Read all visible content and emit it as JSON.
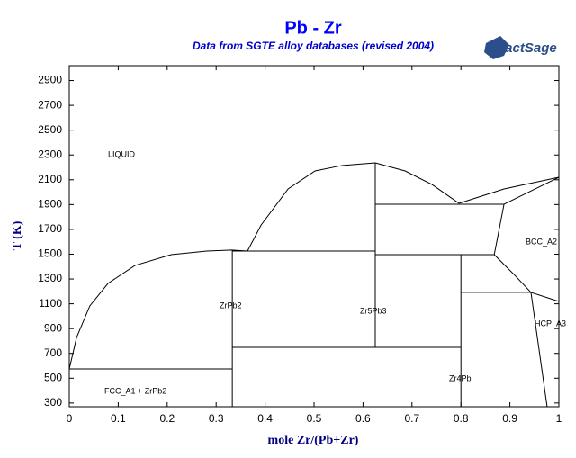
{
  "logo": "FactSage",
  "chart_data": {
    "type": "line",
    "title": "Pb - Zr",
    "subtitle": "Data from SGTE alloy databases (revised 2004)",
    "x_label": "mole Zr/(Pb+Zr)",
    "y_label": "T (K)",
    "xlim": [
      0,
      1
    ],
    "ylim": [
      270,
      3020
    ],
    "xticks": [
      0,
      0.1,
      0.2,
      0.3,
      0.4,
      0.5,
      0.6,
      0.7,
      0.8,
      0.9,
      1
    ],
    "yticks": [
      300,
      500,
      700,
      900,
      1100,
      1300,
      1500,
      1700,
      1900,
      2100,
      2300,
      2500,
      2700,
      2900
    ],
    "annotations": [
      "LIQUID",
      "ZrPb2",
      "Zr5Pb3",
      "Zr4Pb",
      "FCC_A1 + ZrPb2",
      "BCC_A2",
      "HCP_A3"
    ],
    "series": [
      {
        "color": "#000000",
        "x": [
          0,
          0.015,
          0.042,
          0.079,
          0.134,
          0.208,
          0.281,
          0.331,
          0.364
        ],
        "values": [
          575,
          829,
          1083,
          1264,
          1409,
          1496,
          1525,
          1533,
          1525
        ]
      },
      {
        "color": "#000000",
        "x": [
          0.364,
          0.392,
          0.447,
          0.502,
          0.557,
          0.625,
          0.686,
          0.741,
          0.796
        ],
        "values": [
          1525,
          1736,
          2026,
          2171,
          2215,
          2236,
          2171,
          2062,
          1910
        ]
      },
      {
        "color": "#000000",
        "x": [
          0,
          0.333
        ],
        "values": [
          575,
          575
        ]
      },
      {
        "color": "#000000",
        "x": [
          0.333,
          0.333
        ],
        "values": [
          1533,
          270
        ]
      },
      {
        "color": "#000000",
        "x": [
          0.333,
          0.625
        ],
        "values": [
          1525,
          1525
        ]
      },
      {
        "color": "#000000",
        "x": [
          0.625,
          0.625
        ],
        "values": [
          2236,
          749
        ]
      },
      {
        "color": "#000000",
        "x": [
          0.333,
          0.8
        ],
        "values": [
          749,
          749
        ]
      },
      {
        "color": "#000000",
        "x": [
          0.625,
          0.888
        ],
        "values": [
          1903,
          1903
        ]
      },
      {
        "color": "#000000",
        "x": [
          0.796,
          0.888,
          1
        ],
        "values": [
          1910,
          2026,
          2120
        ]
      },
      {
        "color": "#000000",
        "x": [
          0.888,
          1
        ],
        "values": [
          1903,
          2120
        ]
      },
      {
        "color": "#000000",
        "x": [
          0.888,
          0.868
        ],
        "values": [
          1903,
          1496
        ]
      },
      {
        "color": "#000000",
        "x": [
          0.625,
          0.868
        ],
        "values": [
          1496,
          1496
        ]
      },
      {
        "color": "#000000",
        "x": [
          0.8,
          0.8
        ],
        "values": [
          1496,
          270
        ]
      },
      {
        "color": "#000000",
        "x": [
          0.868,
          0.91,
          0.943,
          1
        ],
        "values": [
          1496,
          1330,
          1192,
          1119
        ]
      },
      {
        "color": "#000000",
        "x": [
          0.8,
          0.943
        ],
        "values": [
          1192,
          1192
        ]
      },
      {
        "color": "#000000",
        "x": [
          0.943,
          0.976
        ],
        "values": [
          1192,
          270
        ]
      }
    ]
  }
}
